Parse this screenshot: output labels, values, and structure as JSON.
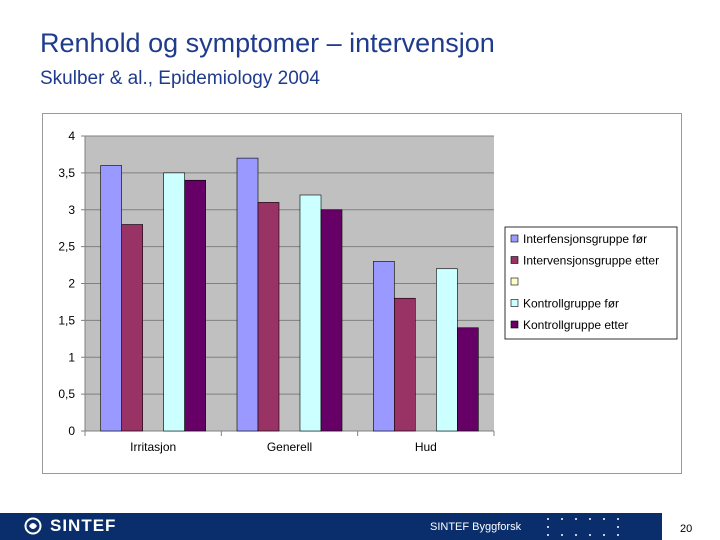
{
  "slide": {
    "title": "Renhold og symptomer – intervensjon",
    "subtitle": "Skulber & al., Epidemiology 2004"
  },
  "footer": {
    "logo": "SINTEF",
    "org": "SINTEF Byggforsk",
    "page_number": "20"
  },
  "chart_data": {
    "type": "bar",
    "title": "",
    "xlabel": "",
    "ylabel": "",
    "ylim": [
      0,
      4
    ],
    "yticks": [
      0,
      0.5,
      1,
      1.5,
      2,
      2.5,
      3,
      3.5,
      4
    ],
    "ytick_labels": [
      "0",
      "0,5",
      "1",
      "1,5",
      "2",
      "2,5",
      "3",
      "3,5",
      "4"
    ],
    "grid": true,
    "legend_position": "right",
    "categories": [
      "Irritasjon",
      "Generell",
      "Hud"
    ],
    "series": [
      {
        "name": "Interfensjonsgruppe før",
        "color": "#9999ff",
        "values": [
          3.6,
          3.7,
          2.3
        ]
      },
      {
        "name": "Intervensjonsgruppe etter",
        "color": "#993366",
        "values": [
          2.8,
          3.1,
          1.8
        ]
      },
      {
        "name": "",
        "color": "#ffffcc",
        "values": [
          null,
          null,
          null
        ]
      },
      {
        "name": "Kontrollgruppe før",
        "color": "#ccffff",
        "values": [
          3.5,
          3.2,
          2.2
        ]
      },
      {
        "name": "Kontrollgruppe etter",
        "color": "#660066",
        "values": [
          3.4,
          3.0,
          1.4
        ]
      }
    ]
  }
}
